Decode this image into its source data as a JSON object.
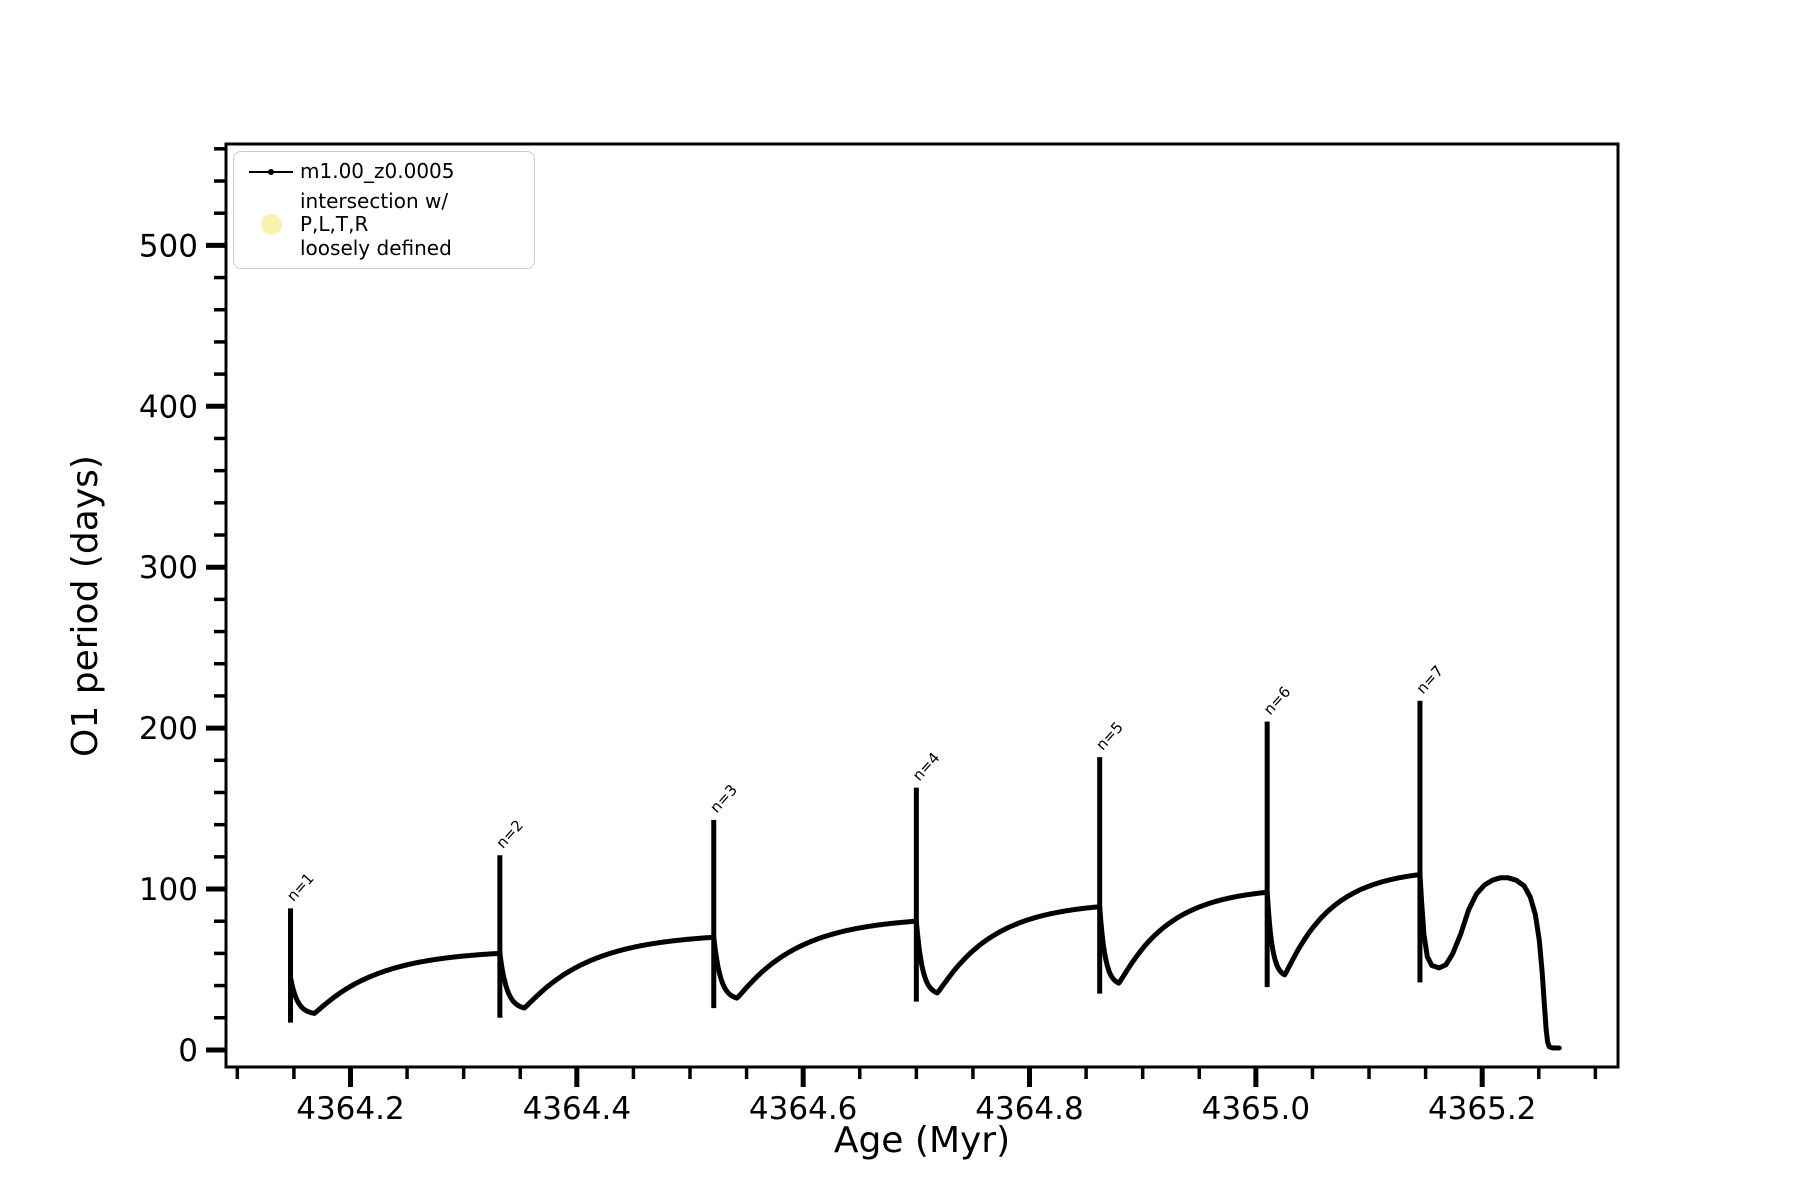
{
  "figure": {
    "background": "#ffffff"
  },
  "axes": {
    "xlabel": "Age (Myr)",
    "ylabel": "O1 period (days)",
    "x_ticks": {
      "major": [
        {
          "v": 4364.2,
          "label": "4364.2"
        },
        {
          "v": 4364.4,
          "label": "4364.4"
        },
        {
          "v": 4364.6,
          "label": "4364.6"
        },
        {
          "v": 4364.8,
          "label": "4364.8"
        },
        {
          "v": 4365.0,
          "label": "4365.0"
        },
        {
          "v": 4365.2,
          "label": "4365.2"
        }
      ],
      "minor": [
        4364.1,
        4364.15,
        4364.25,
        4364.3,
        4364.35,
        4364.45,
        4364.5,
        4364.55,
        4364.65,
        4364.7,
        4364.75,
        4364.85,
        4364.9,
        4364.95,
        4365.05,
        4365.1,
        4365.15,
        4365.25,
        4365.3
      ]
    },
    "y_ticks": {
      "major": [
        {
          "v": 0,
          "label": "0"
        },
        {
          "v": 100,
          "label": "100"
        },
        {
          "v": 200,
          "label": "200"
        },
        {
          "v": 300,
          "label": "300"
        },
        {
          "v": 400,
          "label": "400"
        },
        {
          "v": 500,
          "label": "500"
        }
      ],
      "minor": [
        20,
        40,
        60,
        80,
        120,
        140,
        160,
        180,
        220,
        240,
        260,
        280,
        320,
        340,
        360,
        380,
        420,
        440,
        460,
        480,
        520,
        540,
        560
      ]
    }
  },
  "legend": {
    "entries": [
      {
        "marker": "line-dot",
        "color": "#000000",
        "label": "m1.00_z0.0005"
      },
      {
        "marker": "circle",
        "color": "#f7f2ae",
        "label_line1": "intersection w/ P,L,T,R",
        "label_line2": "loosely defined"
      }
    ]
  },
  "chart_data": {
    "type": "line",
    "title": "",
    "xlabel": "Age (Myr)",
    "ylabel": "O1 period (days)",
    "xlim": [
      4364.09,
      4365.32
    ],
    "ylim": [
      -10.6,
      563
    ],
    "grid": false,
    "legend_position": "upper left",
    "series_name": "m1.00_z0.0005",
    "line_color": "#000000",
    "line_width": 5,
    "cycles": [
      {
        "n": 1,
        "label": "n=1",
        "age": 4364.147,
        "spike_top": 88,
        "spike_bottom": 17,
        "start_level": 45,
        "dip_min": 22,
        "plateau_end": 60
      },
      {
        "n": 2,
        "label": "n=2",
        "age": 4364.332,
        "spike_top": 121,
        "spike_bottom": 20,
        "dip_min": 25,
        "plateau_end": 70
      },
      {
        "n": 3,
        "label": "n=3",
        "age": 4364.521,
        "spike_top": 143,
        "spike_bottom": 26,
        "dip_min": 31,
        "plateau_end": 80
      },
      {
        "n": 4,
        "label": "n=4",
        "age": 4364.7,
        "spike_top": 163,
        "spike_bottom": 30,
        "dip_min": 34,
        "plateau_end": 89
      },
      {
        "n": 5,
        "label": "n=5",
        "age": 4364.862,
        "spike_top": 182,
        "spike_bottom": 35,
        "dip_min": 40,
        "plateau_end": 98
      },
      {
        "n": 6,
        "label": "n=6",
        "age": 4365.01,
        "spike_top": 204,
        "spike_bottom": 39,
        "dip_min": 45,
        "plateau_end": 109
      },
      {
        "n": 7,
        "label": "n=7",
        "age": 4365.145,
        "spike_top": 217,
        "spike_bottom": 42
      }
    ],
    "tail": [
      [
        4365.145,
        109
      ],
      [
        4365.1465,
        92
      ],
      [
        4365.1485,
        72
      ],
      [
        4365.1515,
        58
      ],
      [
        4365.1555,
        52.5
      ],
      [
        4365.162,
        51
      ],
      [
        4365.168,
        53
      ],
      [
        4365.174,
        60
      ],
      [
        4365.181,
        72
      ],
      [
        4365.188,
        87
      ],
      [
        4365.195,
        97
      ],
      [
        4365.202,
        102.5
      ],
      [
        4365.209,
        105.5
      ],
      [
        4365.216,
        107
      ],
      [
        4365.223,
        107
      ],
      [
        4365.23,
        105.5
      ],
      [
        4365.237,
        102
      ],
      [
        4365.2425,
        95
      ],
      [
        4365.247,
        84
      ],
      [
        4365.2505,
        68
      ],
      [
        4365.253,
        48
      ],
      [
        4365.255,
        28
      ],
      [
        4365.2565,
        13
      ],
      [
        4365.2578,
        5
      ],
      [
        4365.2592,
        2
      ],
      [
        4365.262,
        1.3
      ],
      [
        4365.268,
        1.2
      ]
    ]
  }
}
